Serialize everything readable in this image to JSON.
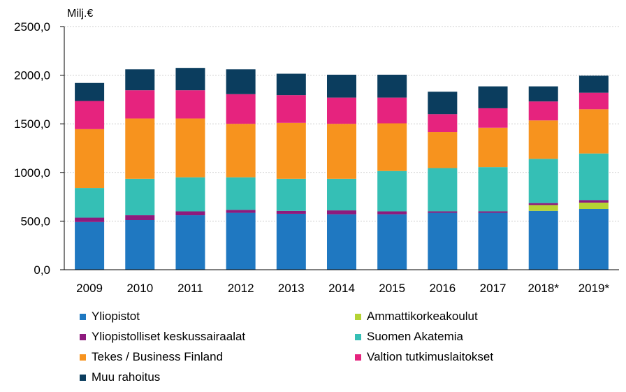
{
  "chart_data": {
    "type": "bar",
    "stacked": true,
    "y_unit_label": "Milj.€",
    "categories": [
      "2009",
      "2010",
      "2011",
      "2012",
      "2013",
      "2014",
      "2015",
      "2016",
      "2017",
      "2018*",
      "2019*"
    ],
    "ylim": [
      0,
      2500
    ],
    "y_ticks": [
      "0,0",
      "500,0",
      "1000,0",
      "1500,0",
      "2000,0",
      "2500,0"
    ],
    "y_tick_values": [
      0,
      500,
      1000,
      1500,
      2000,
      2500
    ],
    "grid": true,
    "legend_position": "bottom",
    "series": [
      {
        "name": "Yliopistot",
        "color": "#1f78c1",
        "values": [
          490,
          510,
          560,
          585,
          575,
          570,
          570,
          585,
          585,
          605,
          625
        ]
      },
      {
        "name": "Ammattikorkeakoulut",
        "color": "#b5d334",
        "values": [
          0,
          0,
          0,
          0,
          0,
          0,
          0,
          0,
          0,
          60,
          65
        ]
      },
      {
        "name": "Yliopistolliset keskussairaalat",
        "color": "#8e1a7d",
        "values": [
          45,
          50,
          40,
          30,
          30,
          40,
          30,
          15,
          15,
          20,
          25
        ]
      },
      {
        "name": "Suomen Akatemia",
        "color": "#35bfb5",
        "values": [
          305,
          375,
          350,
          335,
          330,
          325,
          415,
          445,
          455,
          455,
          480
        ]
      },
      {
        "name": "Tekes / Business Finland",
        "color": "#f7931e",
        "values": [
          605,
          620,
          605,
          550,
          575,
          565,
          490,
          370,
          405,
          395,
          455
        ]
      },
      {
        "name": "Valtion tutkimuslaitokset",
        "color": "#e6237e",
        "values": [
          290,
          290,
          290,
          305,
          285,
          270,
          265,
          185,
          200,
          195,
          170
        ]
      },
      {
        "name": "Muu rahoitus",
        "color": "#0b3d5e",
        "values": [
          185,
          215,
          230,
          255,
          220,
          235,
          235,
          230,
          225,
          155,
          175
        ]
      }
    ]
  }
}
